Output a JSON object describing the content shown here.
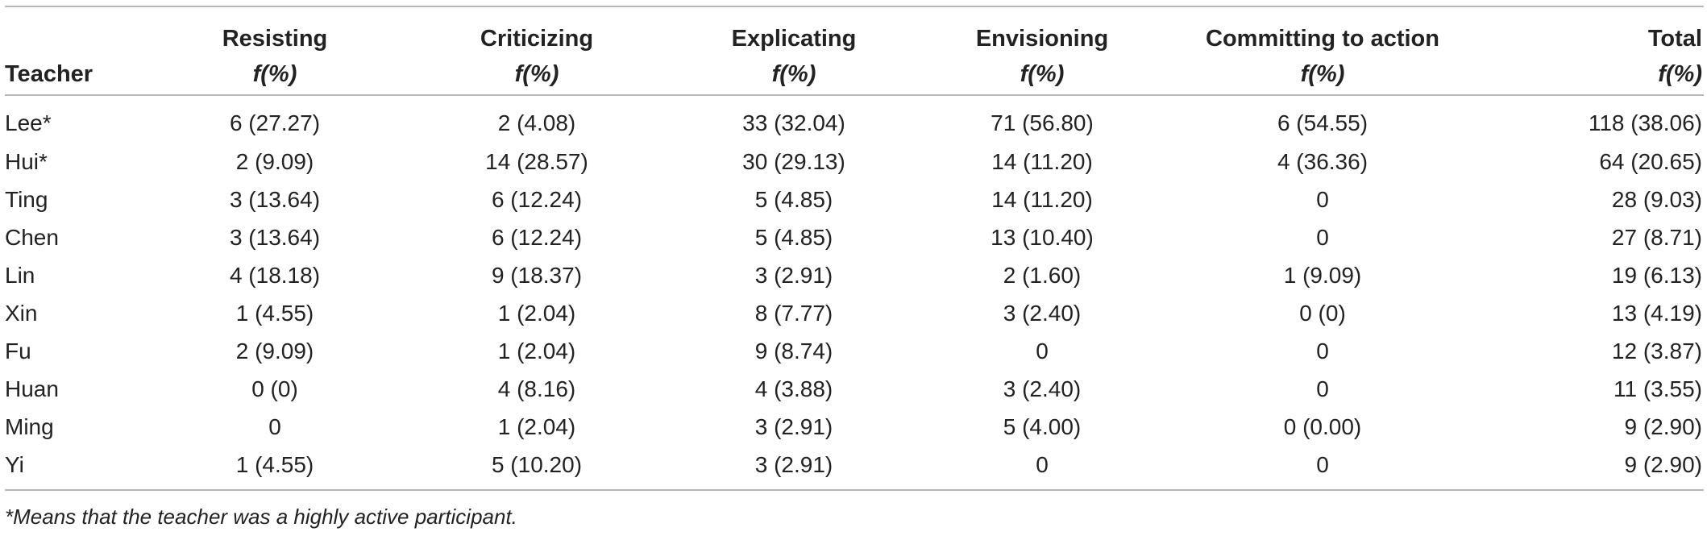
{
  "table": {
    "header": {
      "teacher": "Teacher",
      "columns": [
        {
          "label": "Resisting",
          "sub": "f(%)"
        },
        {
          "label": "Criticizing",
          "sub": "f(%)"
        },
        {
          "label": "Explicating",
          "sub": "f(%)"
        },
        {
          "label": "Envisioning",
          "sub": "f(%)"
        },
        {
          "label": "Committing to action",
          "sub": "f(%)"
        },
        {
          "label": "Total",
          "sub": "f(%)"
        }
      ]
    },
    "rows": [
      {
        "teacher": "Lee*",
        "cells": [
          "6 (27.27)",
          "2 (4.08)",
          "33 (32.04)",
          "71 (56.80)",
          "6 (54.55)",
          "118 (38.06)"
        ]
      },
      {
        "teacher": "Hui*",
        "cells": [
          "2 (9.09)",
          "14 (28.57)",
          "30 (29.13)",
          "14 (11.20)",
          "4 (36.36)",
          "64 (20.65)"
        ]
      },
      {
        "teacher": "Ting",
        "cells": [
          "3 (13.64)",
          "6 (12.24)",
          "5 (4.85)",
          "14 (11.20)",
          "0",
          "28 (9.03)"
        ]
      },
      {
        "teacher": "Chen",
        "cells": [
          "3 (13.64)",
          "6 (12.24)",
          "5 (4.85)",
          "13 (10.40)",
          "0",
          "27 (8.71)"
        ]
      },
      {
        "teacher": "Lin",
        "cells": [
          "4 (18.18)",
          "9 (18.37)",
          "3 (2.91)",
          "2 (1.60)",
          "1 (9.09)",
          "19 (6.13)"
        ]
      },
      {
        "teacher": "Xin",
        "cells": [
          "1 (4.55)",
          "1 (2.04)",
          "8 (7.77)",
          "3 (2.40)",
          "0 (0)",
          "13 (4.19)"
        ]
      },
      {
        "teacher": "Fu",
        "cells": [
          "2 (9.09)",
          "1 (2.04)",
          "9 (8.74)",
          "0",
          "0",
          "12 (3.87)"
        ]
      },
      {
        "teacher": "Huan",
        "cells": [
          "0 (0)",
          "4 (8.16)",
          "4 (3.88)",
          "3 (2.40)",
          "0",
          "11 (3.55)"
        ]
      },
      {
        "teacher": "Ming",
        "cells": [
          "0",
          "1 (2.04)",
          "3 (2.91)",
          "5 (4.00)",
          "0 (0.00)",
          "9 (2.90)"
        ]
      },
      {
        "teacher": "Yi",
        "cells": [
          "1 (4.55)",
          "5 (10.20)",
          "3 (2.91)",
          "0",
          "0",
          "9 (2.90)"
        ]
      }
    ]
  },
  "footnote": "*Means that the teacher was a highly active participant."
}
